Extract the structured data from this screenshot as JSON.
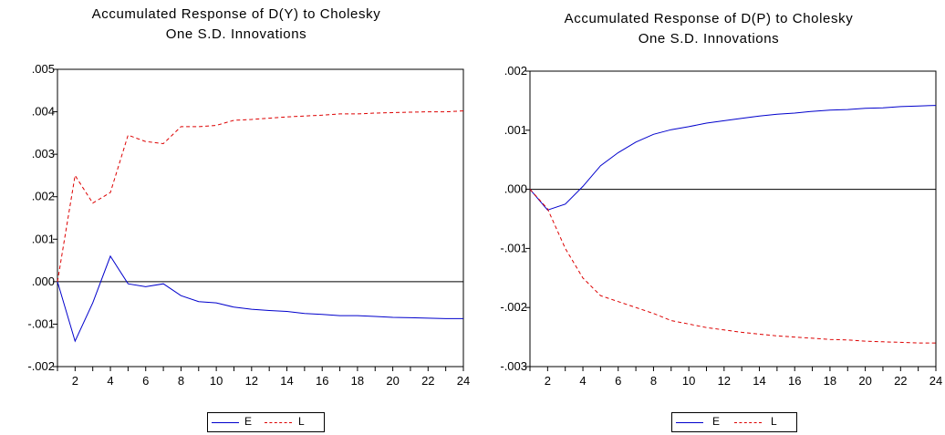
{
  "chart_data": [
    {
      "type": "line",
      "title_line1": "Accumulated Response of D(Y) to Cholesky",
      "title_line2": "One S.D. Innovations",
      "xlim": [
        1,
        24
      ],
      "ylim": [
        -0.002,
        0.005
      ],
      "y_ticks": [
        0.005,
        0.004,
        0.003,
        0.002,
        0.001,
        0.0,
        -0.001,
        -0.002
      ],
      "y_tick_labels": [
        ".005",
        ".004",
        ".003",
        ".002",
        ".001",
        ".000",
        "-.001",
        "-.002"
      ],
      "x_tick_labels": [
        "2",
        "4",
        "6",
        "8",
        "10",
        "12",
        "14",
        "16",
        "18",
        "20",
        "22",
        "24"
      ],
      "zero_line": true,
      "legend_position": "bottom-center",
      "series": [
        {
          "name": "E",
          "color": "#0000cc",
          "style": "solid",
          "x": [
            1,
            2,
            3,
            4,
            5,
            6,
            7,
            8,
            9,
            10,
            11,
            12,
            13,
            14,
            15,
            16,
            17,
            18,
            19,
            20,
            21,
            22,
            23,
            24
          ],
          "values": [
            0.0,
            -0.0014,
            -0.0005,
            0.0006,
            -5e-05,
            -0.00012,
            -5e-05,
            -0.00033,
            -0.00047,
            -0.0005,
            -0.0006,
            -0.00065,
            -0.00068,
            -0.0007,
            -0.00075,
            -0.00077,
            -0.0008,
            -0.0008,
            -0.00082,
            -0.00084,
            -0.00085,
            -0.00086,
            -0.00087,
            -0.00087
          ]
        },
        {
          "name": "L",
          "color": "#dd0000",
          "style": "dashed",
          "x": [
            1,
            2,
            3,
            4,
            5,
            6,
            7,
            8,
            9,
            10,
            11,
            12,
            13,
            14,
            15,
            16,
            17,
            18,
            19,
            20,
            21,
            22,
            23,
            24
          ],
          "values": [
            0.0,
            0.0025,
            0.00185,
            0.0021,
            0.00345,
            0.0033,
            0.00325,
            0.00365,
            0.00365,
            0.00368,
            0.0038,
            0.00382,
            0.00385,
            0.00388,
            0.0039,
            0.00392,
            0.00395,
            0.00395,
            0.00397,
            0.00398,
            0.00399,
            0.004,
            0.004,
            0.00402
          ]
        }
      ]
    },
    {
      "type": "line",
      "title_line1": "Accumulated Response of D(P) to Cholesky",
      "title_line2": "One S.D. Innovations",
      "xlim": [
        1,
        24
      ],
      "ylim": [
        -0.003,
        0.002
      ],
      "y_ticks": [
        0.002,
        0.001,
        0.0,
        -0.001,
        -0.002,
        -0.003
      ],
      "y_tick_labels": [
        ".002",
        ".001",
        ".000",
        "-.001",
        "-.002",
        "-.003"
      ],
      "x_tick_labels": [
        "2",
        "4",
        "6",
        "8",
        "10",
        "12",
        "14",
        "16",
        "18",
        "20",
        "22",
        "24"
      ],
      "zero_line": true,
      "legend_position": "bottom-center",
      "series": [
        {
          "name": "E",
          "color": "#0000cc",
          "style": "solid",
          "x": [
            1,
            2,
            3,
            4,
            5,
            6,
            7,
            8,
            9,
            10,
            11,
            12,
            13,
            14,
            15,
            16,
            17,
            18,
            19,
            20,
            21,
            22,
            23,
            24
          ],
          "values": [
            0.0,
            -0.00035,
            -0.00025,
            5e-05,
            0.0004,
            0.00062,
            0.0008,
            0.00093,
            0.00101,
            0.00106,
            0.00112,
            0.00116,
            0.0012,
            0.00124,
            0.00127,
            0.00129,
            0.00132,
            0.00134,
            0.00135,
            0.00137,
            0.00138,
            0.0014,
            0.00141,
            0.00142
          ]
        },
        {
          "name": "L",
          "color": "#dd0000",
          "style": "dashed",
          "x": [
            1,
            2,
            3,
            4,
            5,
            6,
            7,
            8,
            9,
            10,
            11,
            12,
            13,
            14,
            15,
            16,
            17,
            18,
            19,
            20,
            21,
            22,
            23,
            24
          ],
          "values": [
            0.0,
            -0.00033,
            -0.001,
            -0.0015,
            -0.0018,
            -0.0019,
            -0.002,
            -0.0021,
            -0.00222,
            -0.00228,
            -0.00234,
            -0.00238,
            -0.00242,
            -0.00245,
            -0.00248,
            -0.0025,
            -0.00252,
            -0.00254,
            -0.00255,
            -0.00257,
            -0.00258,
            -0.00259,
            -0.0026,
            -0.0026
          ]
        }
      ]
    }
  ]
}
